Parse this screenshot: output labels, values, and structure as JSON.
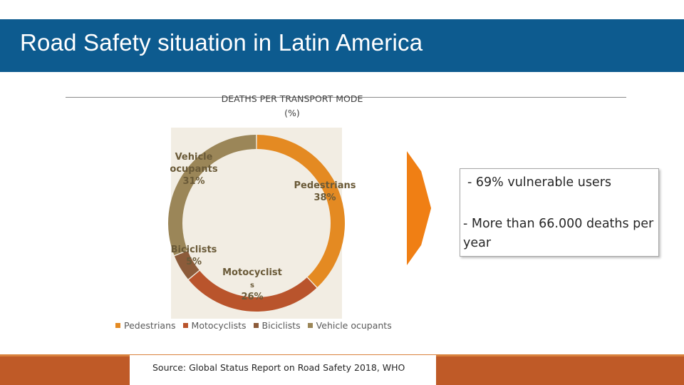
{
  "slide": {
    "title": "Road Safety situation in Latin America"
  },
  "chart_data": {
    "type": "donut",
    "title": "DEATHS PER TRANSPORT MODE",
    "subtitle": "(%)",
    "slices": [
      {
        "name": "Pedestrians",
        "value": 38,
        "color": "#e48a22",
        "label_line1": "Pedestrians",
        "label_line2": "38%"
      },
      {
        "name": "Motocyclists",
        "value": 26,
        "color": "#b9542c",
        "label_line1": "Motocyclist",
        "label_line2": "s",
        "label_line3": "26%"
      },
      {
        "name": "Biciclists",
        "value": 5,
        "color": "#8c5b3a",
        "label_line1": "Biciclists",
        "label_line2": "5%"
      },
      {
        "name": "Vehicle ocupants",
        "value": 31,
        "color": "#9b8658",
        "label_line1": "Vehicle",
        "label_line2": "ocupants",
        "label_line3": "31%"
      }
    ],
    "legend": [
      "Pedestrians",
      "Motocyclists",
      "Biciclists",
      "Vehicle ocupants"
    ],
    "legend_position": "bottom"
  },
  "info_box": {
    "line1": "- 69% vulnerable users",
    "line2": "- More than 66.000 deaths per year"
  },
  "source": "Source: Global Status Report on Road Safety 2018, WHO",
  "colors": {
    "title_bar": "#0d5b8f",
    "arrow": "#f07f14",
    "footer": "#bf5a27"
  }
}
